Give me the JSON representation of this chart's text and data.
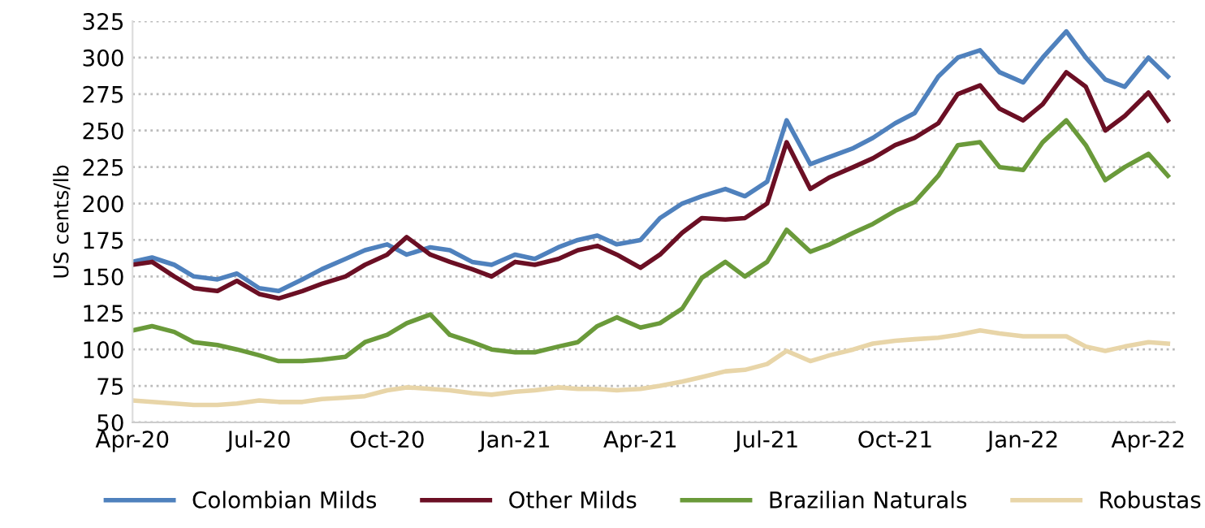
{
  "chart_data": {
    "type": "line",
    "ylabel": "US cents/lb",
    "x": [
      "2020-04-01",
      "2020-04-15",
      "2020-05-01",
      "2020-05-15",
      "2020-06-01",
      "2020-06-15",
      "2020-07-01",
      "2020-07-15",
      "2020-08-01",
      "2020-08-15",
      "2020-09-01",
      "2020-09-15",
      "2020-10-01",
      "2020-10-15",
      "2020-11-01",
      "2020-11-15",
      "2020-12-01",
      "2020-12-15",
      "2021-01-01",
      "2021-01-15",
      "2021-02-01",
      "2021-02-15",
      "2021-03-01",
      "2021-03-15",
      "2021-04-01",
      "2021-04-15",
      "2021-05-01",
      "2021-05-15",
      "2021-06-01",
      "2021-06-15",
      "2021-07-01",
      "2021-07-15",
      "2021-08-01",
      "2021-08-15",
      "2021-09-01",
      "2021-09-15",
      "2021-10-01",
      "2021-10-15",
      "2021-11-01",
      "2021-11-15",
      "2021-12-01",
      "2021-12-15",
      "2022-01-01",
      "2022-01-15",
      "2022-02-01",
      "2022-02-15",
      "2022-03-01",
      "2022-03-15",
      "2022-04-01",
      "2022-04-15"
    ],
    "series": [
      {
        "name": "Colombian Milds",
        "color": "#4f81bd",
        "values": [
          160,
          163,
          158,
          150,
          148,
          152,
          142,
          140,
          148,
          155,
          162,
          168,
          172,
          165,
          170,
          168,
          160,
          158,
          165,
          162,
          170,
          175,
          178,
          172,
          175,
          190,
          200,
          205,
          210,
          205,
          215,
          257,
          227,
          232,
          238,
          245,
          255,
          262,
          287,
          300,
          305,
          290,
          283,
          300,
          318,
          300,
          285,
          280,
          300,
          287
        ]
      },
      {
        "name": "Other Milds",
        "color": "#6b0f24",
        "values": [
          158,
          160,
          150,
          142,
          140,
          147,
          138,
          135,
          140,
          145,
          150,
          158,
          165,
          177,
          165,
          160,
          155,
          150,
          160,
          158,
          162,
          168,
          171,
          165,
          156,
          165,
          180,
          190,
          189,
          190,
          200,
          242,
          210,
          218,
          225,
          231,
          240,
          245,
          255,
          275,
          281,
          265,
          257,
          268,
          290,
          280,
          250,
          260,
          276,
          257
        ]
      },
      {
        "name": "Brazilian Naturals",
        "color": "#6a9a3a",
        "values": [
          113,
          116,
          112,
          105,
          103,
          100,
          96,
          92,
          92,
          93,
          95,
          105,
          110,
          118,
          124,
          110,
          105,
          100,
          98,
          98,
          102,
          105,
          116,
          122,
          115,
          118,
          128,
          149,
          160,
          150,
          160,
          182,
          167,
          172,
          180,
          186,
          195,
          201,
          219,
          240,
          242,
          225,
          223,
          242,
          257,
          240,
          216,
          225,
          234,
          219
        ]
      },
      {
        "name": "Robustas",
        "color": "#e8d5a8",
        "values": [
          65,
          64,
          63,
          62,
          62,
          63,
          65,
          64,
          64,
          66,
          67,
          68,
          72,
          74,
          73,
          72,
          70,
          69,
          71,
          72,
          74,
          73,
          73,
          72,
          73,
          75,
          78,
          81,
          85,
          86,
          90,
          99,
          92,
          96,
          100,
          104,
          106,
          107,
          108,
          110,
          113,
          111,
          109,
          109,
          109,
          102,
          99,
          102,
          105,
          104
        ]
      }
    ],
    "xlim": [
      "2020-04-01",
      "2022-04-20"
    ],
    "xticks": [
      {
        "value": "2020-04-01",
        "label": "Apr-20"
      },
      {
        "value": "2020-07-01",
        "label": "Jul-20"
      },
      {
        "value": "2020-10-01",
        "label": "Oct-20"
      },
      {
        "value": "2021-01-01",
        "label": "Jan-21"
      },
      {
        "value": "2021-04-01",
        "label": "Apr-21"
      },
      {
        "value": "2021-07-01",
        "label": "Jul-21"
      },
      {
        "value": "2021-10-01",
        "label": "Oct-21"
      },
      {
        "value": "2022-01-01",
        "label": "Jan-22"
      },
      {
        "value": "2022-04-01",
        "label": "Apr-22"
      }
    ],
    "ylim": [
      50,
      325
    ],
    "yticks": [
      50,
      75,
      100,
      125,
      150,
      175,
      200,
      225,
      250,
      275,
      300,
      325
    ],
    "grid": "y",
    "legend": "bottom",
    "marker": "none",
    "line_style": "solid"
  }
}
